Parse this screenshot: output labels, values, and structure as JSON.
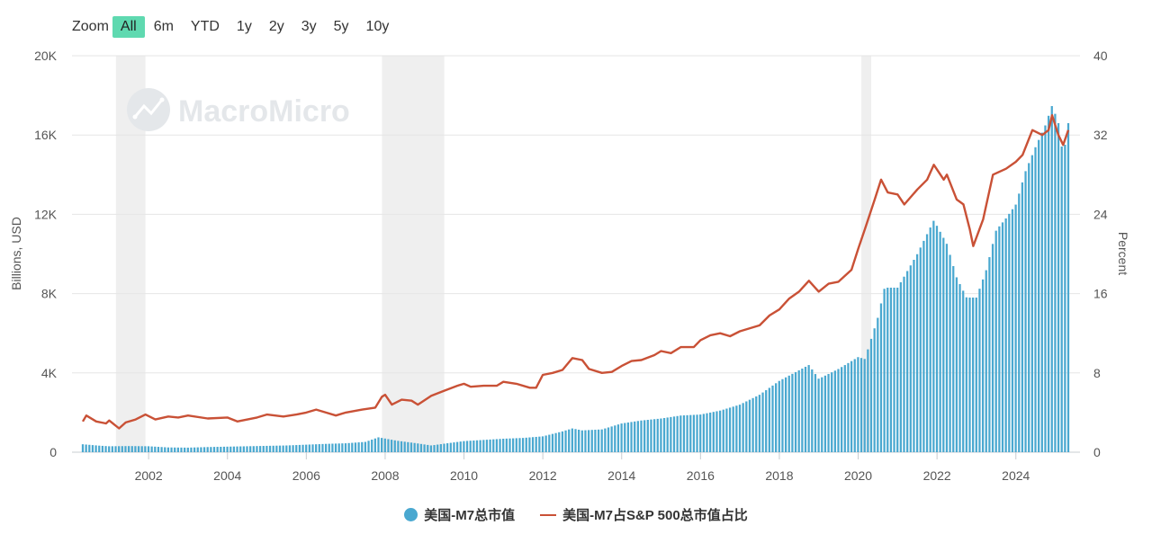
{
  "zoom": {
    "label": "Zoom",
    "options": [
      "All",
      "6m",
      "YTD",
      "1y",
      "2y",
      "3y",
      "5y",
      "10y"
    ],
    "active": "All"
  },
  "watermark": "MacroMicro",
  "legend": {
    "items": [
      {
        "label": "美国-M7总市值",
        "color": "#4aa8d0"
      },
      {
        "label": "美国-M7占S&P 500总市值占比",
        "color": "#c95136"
      }
    ]
  },
  "chart_data": {
    "type": "bar+line",
    "x_range": [
      2000.33,
      2025.33
    ],
    "x_ticks": [
      "2002",
      "2004",
      "2006",
      "2008",
      "2010",
      "2012",
      "2014",
      "2016",
      "2018",
      "2020",
      "2022",
      "2024"
    ],
    "y_left": {
      "label": "Billions, USD",
      "range": [
        0,
        20000
      ],
      "ticks": [
        "0",
        "4K",
        "8K",
        "12K",
        "16K",
        "20K"
      ]
    },
    "y_right": {
      "label": "Percent",
      "range": [
        0,
        40
      ],
      "ticks": [
        "0",
        "8",
        "16",
        "24",
        "32",
        "40"
      ]
    },
    "grid": true,
    "legend_position": "bottom-center",
    "recession_shading": [
      [
        2001.17,
        2001.92
      ],
      [
        2007.92,
        2009.5
      ],
      [
        2020.08,
        2020.33
      ]
    ],
    "series": [
      {
        "name": "美国-M7总市值",
        "type": "bar",
        "color": "#4aa8d0",
        "points": [
          [
            2000.33,
            400
          ],
          [
            2000.75,
            330
          ],
          [
            2001.0,
            300
          ],
          [
            2001.5,
            310
          ],
          [
            2002.0,
            300
          ],
          [
            2002.5,
            240
          ],
          [
            2003.0,
            230
          ],
          [
            2003.5,
            260
          ],
          [
            2004.0,
            280
          ],
          [
            2004.5,
            300
          ],
          [
            2005.0,
            320
          ],
          [
            2005.5,
            340
          ],
          [
            2006.0,
            380
          ],
          [
            2006.5,
            420
          ],
          [
            2007.0,
            450
          ],
          [
            2007.5,
            520
          ],
          [
            2007.83,
            750
          ],
          [
            2008.3,
            580
          ],
          [
            2008.8,
            450
          ],
          [
            2009.17,
            340
          ],
          [
            2009.5,
            430
          ],
          [
            2010.0,
            560
          ],
          [
            2010.5,
            620
          ],
          [
            2011.0,
            680
          ],
          [
            2011.5,
            720
          ],
          [
            2012.0,
            800
          ],
          [
            2012.5,
            1050
          ],
          [
            2012.75,
            1200
          ],
          [
            2013.0,
            1100
          ],
          [
            2013.5,
            1150
          ],
          [
            2014.0,
            1450
          ],
          [
            2014.5,
            1600
          ],
          [
            2015.0,
            1700
          ],
          [
            2015.5,
            1850
          ],
          [
            2016.0,
            1900
          ],
          [
            2016.5,
            2100
          ],
          [
            2017.0,
            2400
          ],
          [
            2017.5,
            2900
          ],
          [
            2018.0,
            3600
          ],
          [
            2018.75,
            4400
          ],
          [
            2019.0,
            3700
          ],
          [
            2019.5,
            4200
          ],
          [
            2020.0,
            4800
          ],
          [
            2020.17,
            4700
          ],
          [
            2020.5,
            6800
          ],
          [
            2020.67,
            8300
          ],
          [
            2021.0,
            8300
          ],
          [
            2021.5,
            10000
          ],
          [
            2021.92,
            11700
          ],
          [
            2022.25,
            10500
          ],
          [
            2022.5,
            8800
          ],
          [
            2022.75,
            7800
          ],
          [
            2023.0,
            7800
          ],
          [
            2023.25,
            9200
          ],
          [
            2023.5,
            11200
          ],
          [
            2023.75,
            11800
          ],
          [
            2024.0,
            12500
          ],
          [
            2024.25,
            14200
          ],
          [
            2024.5,
            15400
          ],
          [
            2024.75,
            16500
          ],
          [
            2024.92,
            17500
          ],
          [
            2025.08,
            16600
          ],
          [
            2025.2,
            14900
          ],
          [
            2025.33,
            16600
          ]
        ]
      },
      {
        "name": "美国-M7占S&P 500总市值占比",
        "type": "line",
        "color": "#c95136",
        "points": [
          [
            2000.33,
            3.1
          ],
          [
            2000.42,
            3.7
          ],
          [
            2000.67,
            3.1
          ],
          [
            2000.92,
            2.9
          ],
          [
            2001.0,
            3.2
          ],
          [
            2001.25,
            2.4
          ],
          [
            2001.42,
            3.0
          ],
          [
            2001.67,
            3.3
          ],
          [
            2001.92,
            3.8
          ],
          [
            2002.17,
            3.3
          ],
          [
            2002.5,
            3.6
          ],
          [
            2002.75,
            3.5
          ],
          [
            2003.0,
            3.7
          ],
          [
            2003.5,
            3.4
          ],
          [
            2004.0,
            3.5
          ],
          [
            2004.25,
            3.1
          ],
          [
            2004.75,
            3.5
          ],
          [
            2005.0,
            3.8
          ],
          [
            2005.42,
            3.6
          ],
          [
            2005.75,
            3.8
          ],
          [
            2006.0,
            4.0
          ],
          [
            2006.25,
            4.3
          ],
          [
            2006.5,
            4.0
          ],
          [
            2006.75,
            3.7
          ],
          [
            2007.0,
            4.0
          ],
          [
            2007.42,
            4.3
          ],
          [
            2007.75,
            4.5
          ],
          [
            2007.92,
            5.6
          ],
          [
            2008.0,
            5.8
          ],
          [
            2008.17,
            4.8
          ],
          [
            2008.42,
            5.3
          ],
          [
            2008.67,
            5.2
          ],
          [
            2008.83,
            4.8
          ],
          [
            2009.17,
            5.7
          ],
          [
            2009.5,
            6.2
          ],
          [
            2009.83,
            6.7
          ],
          [
            2010.0,
            6.9
          ],
          [
            2010.17,
            6.6
          ],
          [
            2010.5,
            6.7
          ],
          [
            2010.83,
            6.7
          ],
          [
            2011.0,
            7.1
          ],
          [
            2011.33,
            6.9
          ],
          [
            2011.67,
            6.5
          ],
          [
            2011.83,
            6.5
          ],
          [
            2012.0,
            7.8
          ],
          [
            2012.25,
            8.0
          ],
          [
            2012.5,
            8.3
          ],
          [
            2012.75,
            9.5
          ],
          [
            2013.0,
            9.3
          ],
          [
            2013.17,
            8.4
          ],
          [
            2013.5,
            8.0
          ],
          [
            2013.75,
            8.1
          ],
          [
            2014.0,
            8.7
          ],
          [
            2014.25,
            9.2
          ],
          [
            2014.5,
            9.3
          ],
          [
            2014.83,
            9.8
          ],
          [
            2015.0,
            10.2
          ],
          [
            2015.25,
            10.0
          ],
          [
            2015.5,
            10.6
          ],
          [
            2015.83,
            10.6
          ],
          [
            2016.0,
            11.3
          ],
          [
            2016.25,
            11.8
          ],
          [
            2016.5,
            12.0
          ],
          [
            2016.75,
            11.7
          ],
          [
            2017.0,
            12.2
          ],
          [
            2017.5,
            12.8
          ],
          [
            2017.75,
            13.8
          ],
          [
            2018.0,
            14.4
          ],
          [
            2018.25,
            15.5
          ],
          [
            2018.5,
            16.2
          ],
          [
            2018.75,
            17.3
          ],
          [
            2019.0,
            16.2
          ],
          [
            2019.25,
            17.0
          ],
          [
            2019.5,
            17.2
          ],
          [
            2019.83,
            18.4
          ],
          [
            2020.0,
            20.5
          ],
          [
            2020.17,
            22.5
          ],
          [
            2020.42,
            25.5
          ],
          [
            2020.58,
            27.5
          ],
          [
            2020.75,
            26.2
          ],
          [
            2021.0,
            26.0
          ],
          [
            2021.17,
            25.0
          ],
          [
            2021.5,
            26.5
          ],
          [
            2021.75,
            27.5
          ],
          [
            2021.92,
            29.0
          ],
          [
            2022.17,
            27.5
          ],
          [
            2022.25,
            28.0
          ],
          [
            2022.5,
            25.5
          ],
          [
            2022.67,
            25.0
          ],
          [
            2022.83,
            22.5
          ],
          [
            2022.92,
            20.8
          ],
          [
            2023.17,
            23.5
          ],
          [
            2023.42,
            28.0
          ],
          [
            2023.75,
            28.6
          ],
          [
            2024.0,
            29.3
          ],
          [
            2024.17,
            30.0
          ],
          [
            2024.42,
            32.5
          ],
          [
            2024.67,
            32.0
          ],
          [
            2024.83,
            32.5
          ],
          [
            2024.92,
            34.0
          ],
          [
            2025.08,
            32.0
          ],
          [
            2025.2,
            31.0
          ],
          [
            2025.33,
            32.5
          ]
        ]
      }
    ]
  }
}
